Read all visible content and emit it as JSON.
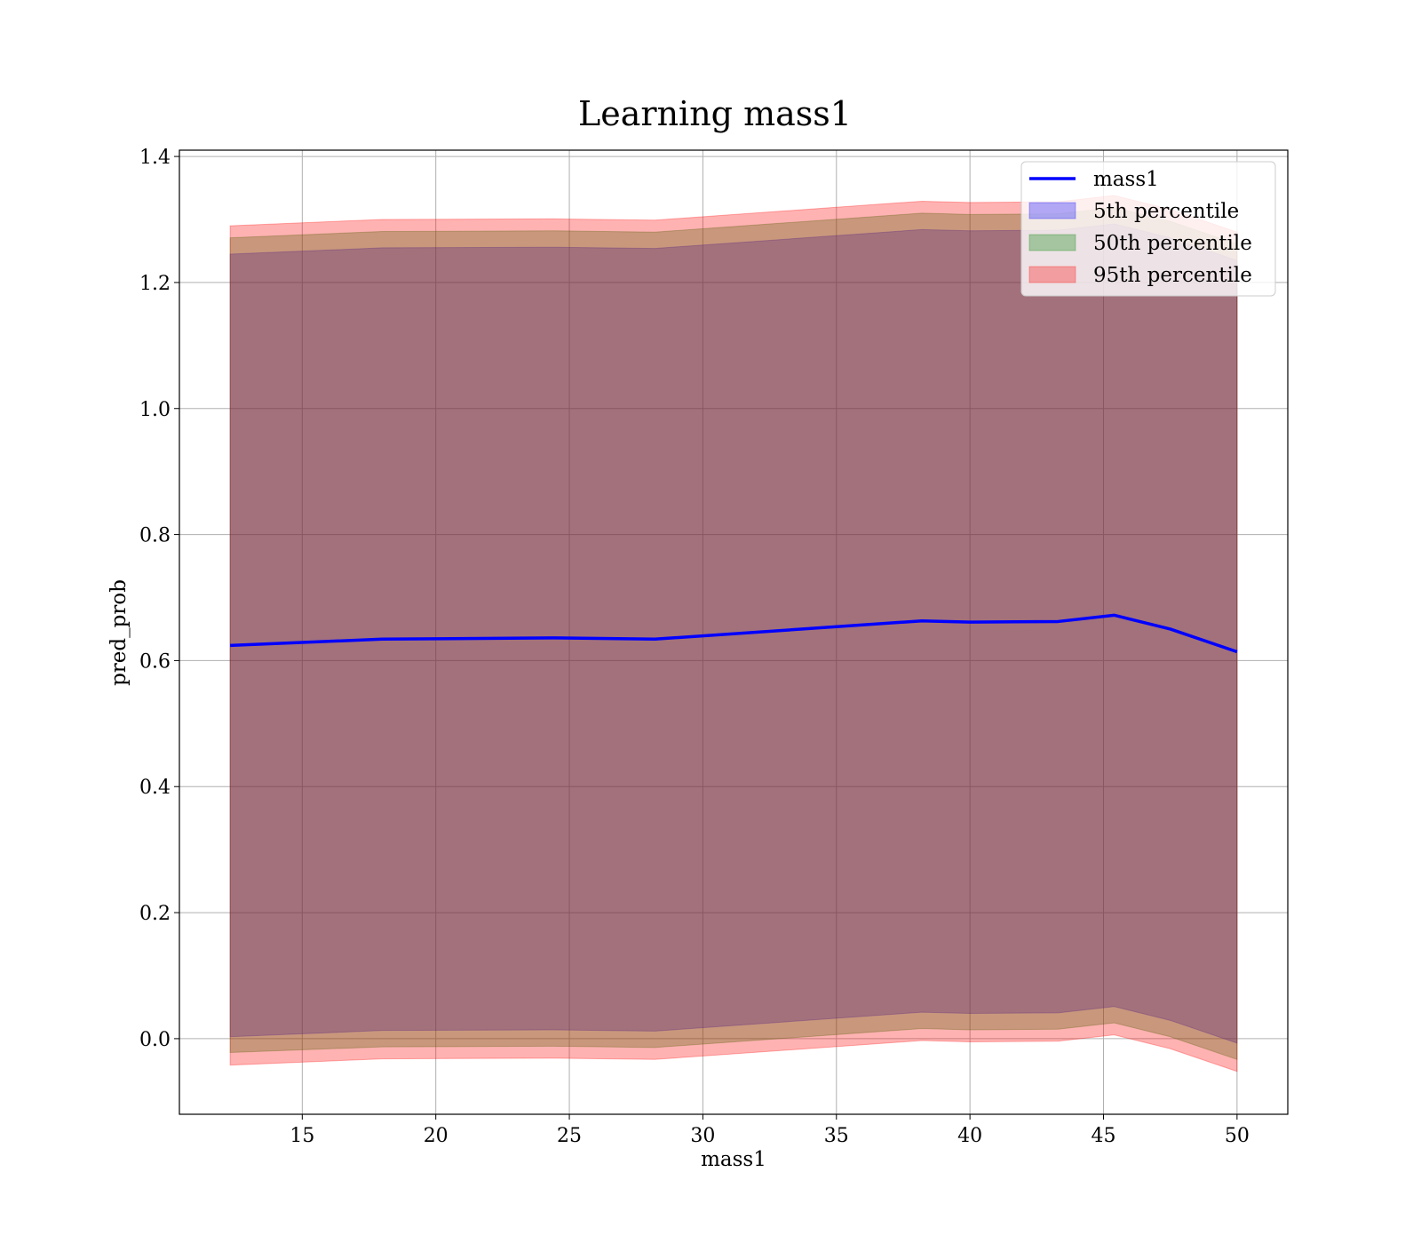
{
  "chart_data": {
    "type": "area",
    "title": "Learning mass1",
    "xlabel": "mass1",
    "ylabel": "pred_prob",
    "xlim": [
      10.4,
      51.9
    ],
    "ylim": [
      -0.12,
      1.41
    ],
    "xticks": [
      15,
      20,
      25,
      30,
      35,
      40,
      45,
      50
    ],
    "xtick_labels": [
      "15",
      "20",
      "25",
      "30",
      "35",
      "40",
      "45",
      "50"
    ],
    "yticks": [
      0.0,
      0.2,
      0.4,
      0.6,
      0.8,
      1.0,
      1.2,
      1.4
    ],
    "ytick_labels": [
      "0.0",
      "0.2",
      "0.4",
      "0.6",
      "0.8",
      "1.0",
      "1.2",
      "1.4"
    ],
    "grid": true,
    "legend_position": "top-right",
    "x": [
      12.3,
      18.0,
      24.4,
      28.2,
      38.2,
      40.0,
      43.3,
      45.4,
      47.5,
      50.0
    ],
    "line": {
      "name": "mass1",
      "color": "#0000ff",
      "values": [
        0.624,
        0.634,
        0.636,
        0.634,
        0.663,
        0.661,
        0.662,
        0.672,
        0.65,
        0.614
      ]
    },
    "bands": [
      {
        "name": "5th percentile",
        "color": "#0000ff",
        "lower": [
          0.003,
          0.013,
          0.014,
          0.012,
          0.042,
          0.04,
          0.041,
          0.051,
          0.029,
          -0.007
        ],
        "upper": [
          1.245,
          1.255,
          1.256,
          1.254,
          1.284,
          1.282,
          1.283,
          1.293,
          1.271,
          1.235
        ]
      },
      {
        "name": "50th percentile",
        "color": "#008000",
        "lower": [
          -0.022,
          -0.013,
          -0.012,
          -0.014,
          0.016,
          0.014,
          0.015,
          0.025,
          0.003,
          -0.033
        ],
        "upper": [
          1.271,
          1.281,
          1.282,
          1.28,
          1.31,
          1.308,
          1.309,
          1.319,
          1.297,
          1.261
        ]
      },
      {
        "name": "95th percentile",
        "color": "#ff0000",
        "lower": [
          -0.042,
          -0.032,
          -0.031,
          -0.033,
          -0.003,
          -0.005,
          -0.004,
          0.006,
          -0.016,
          -0.052
        ],
        "upper": [
          1.29,
          1.3,
          1.301,
          1.299,
          1.329,
          1.327,
          1.328,
          1.338,
          1.316,
          1.28
        ]
      }
    ],
    "legend": [
      "mass1",
      "5th percentile",
      "50th percentile",
      "95th percentile"
    ]
  }
}
